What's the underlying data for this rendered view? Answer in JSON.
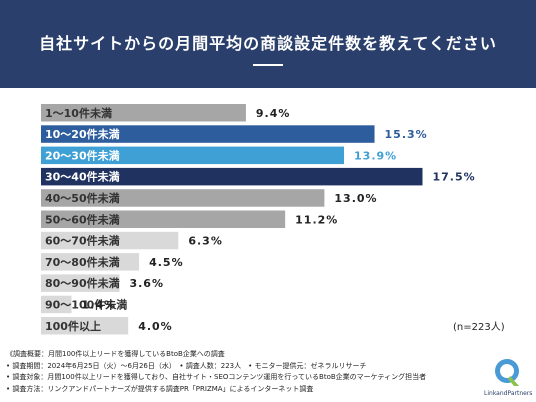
{
  "header": {
    "title": "自社サイトからの月間平均の商談設定件数を教えてください"
  },
  "chart_data": {
    "type": "bar",
    "orientation": "horizontal",
    "categories": [
      "1〜10件未満",
      "10〜20件未満",
      "20〜30件未満",
      "30〜40件未満",
      "40〜50件未満",
      "50〜60件未満",
      "60〜70件未満",
      "70〜80件未満",
      "80〜90件未満",
      "90〜100件未満",
      "100件以上"
    ],
    "values": [
      9.4,
      15.3,
      13.9,
      17.5,
      13.0,
      11.2,
      6.3,
      4.5,
      3.6,
      1.4,
      4.0
    ],
    "value_labels": [
      "9.4%",
      "15.3%",
      "13.9%",
      "17.5%",
      "13.0%",
      "11.2%",
      "6.3%",
      "4.5%",
      "3.6%",
      "1.4%",
      "4.0%"
    ],
    "bar_colors": [
      "#a6a6a6",
      "#2e5d9e",
      "#3ea0d4",
      "#1f3260",
      "#a6a6a6",
      "#a6a6a6",
      "#d9d9d9",
      "#d9d9d9",
      "#d9d9d9",
      "#d9d9d9",
      "#d9d9d9"
    ],
    "label_colors": [
      "#222222",
      "#2e5d9e",
      "#3ea0d4",
      "#1f3260",
      "#222222",
      "#222222",
      "#222222",
      "#222222",
      "#222222",
      "#222222",
      "#222222"
    ],
    "title": "",
    "xlabel": "",
    "ylabel": "",
    "xlim": [
      0,
      17.5
    ],
    "grid": false,
    "legend": "none"
  },
  "sample_note": "(n=223人)",
  "notes": [
    "《調査概要：月間100件以上リードを獲得しているBtoB企業への調査",
    "• 調査期間：2024年6月25日（火）〜6月26日（水）　• 調査人数：223人　• モニター提供元：ゼネラルリサーチ",
    "• 調査対象：月間100件以上リードを獲得しており、自社サイト・SEOコンテンツ運用を行っているBtoB企業のマーケティング担当者",
    "• 調査方法：リンクアンドパートナーズが提供する調査PR「PRIZMA」によるインターネット調査"
  ],
  "logo": {
    "text": "LinkandPartners"
  }
}
